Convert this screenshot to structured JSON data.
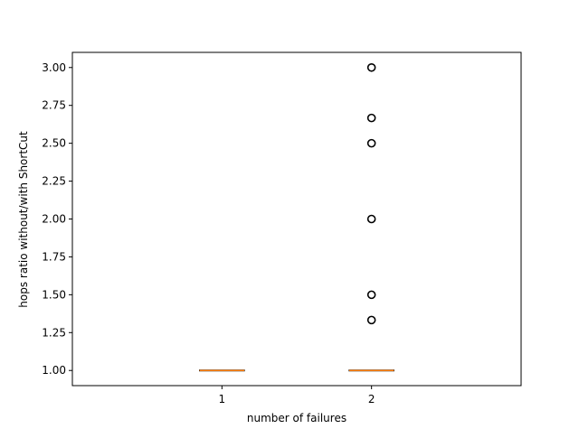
{
  "chart_data": {
    "type": "box",
    "title": "",
    "xlabel": "number of failures",
    "ylabel": "hops ratio without/with ShortCut",
    "categories": [
      "1",
      "2"
    ],
    "ylim": [
      0.9,
      3.1
    ],
    "yticks": [
      "1.00",
      "1.25",
      "1.50",
      "1.75",
      "2.00",
      "2.25",
      "2.50",
      "2.75",
      "3.00"
    ],
    "ytick_values": [
      1.0,
      1.25,
      1.5,
      1.75,
      2.0,
      2.25,
      2.5,
      2.75,
      3.0
    ],
    "boxes": [
      {
        "category": "1",
        "min": 1.0,
        "q1": 1.0,
        "median": 1.0,
        "q3": 1.0,
        "max": 1.0,
        "outliers": []
      },
      {
        "category": "2",
        "min": 1.0,
        "q1": 1.0,
        "median": 1.0,
        "q3": 1.0,
        "max": 1.0,
        "outliers": [
          1.333,
          1.5,
          2.0,
          2.5,
          2.667,
          3.0
        ]
      }
    ],
    "grid": false,
    "colors": {
      "box": "#000000",
      "median": "#ff7f0e",
      "outlier": "#000000"
    }
  }
}
